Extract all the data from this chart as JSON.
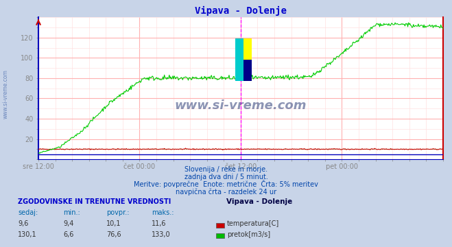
{
  "title": "Vipava - Dolenje",
  "title_color": "#0000cc",
  "bg_color": "#c8d4e8",
  "plot_bg_color": "#ffffff",
  "grid_color_major": "#ffb0b0",
  "grid_color_minor": "#ffe0e0",
  "x_labels": [
    "sre 12:00",
    "čet 00:00",
    "čet 12:00",
    "pet 00:00"
  ],
  "x_label_color": "#0044aa",
  "y_min": 0,
  "y_max": 140,
  "y_ticks": [
    20,
    40,
    60,
    80,
    100,
    120
  ],
  "y_tick_color": "#444444",
  "subtitle_lines": [
    "Slovenija / reke in morje.",
    "zadnja dva dni / 5 minut.",
    "Meritve: povprečne  Enote: metrične  Črta: 5% meritev",
    "navpična črta - razdelek 24 ur"
  ],
  "subtitle_color": "#0044aa",
  "table_header": "ZGODOVINSKE IN TRENUTNE VREDNOSTI",
  "table_header_color": "#0000cc",
  "col_headers": [
    "sedaj:",
    "min.:",
    "povpr.:",
    "maks.:"
  ],
  "col_header_color": "#0066aa",
  "row1_values": [
    "9,6",
    "9,4",
    "10,1",
    "11,6"
  ],
  "row2_values": [
    "130,1",
    "6,6",
    "76,6",
    "133,0"
  ],
  "row_color": "#333333",
  "legend_labels": [
    "temperatura[C]",
    "pretok[m3/s]"
  ],
  "legend_colors": [
    "#cc0000",
    "#00bb00"
  ],
  "station_label": "Vipava - Dolenje",
  "station_label_color": "#000044",
  "temp_line_color": "#cc0000",
  "flow_line_color": "#00cc00",
  "temp_dot_color": "#008800",
  "vline_color": "#ff00ff",
  "hline_color": "#0000bb",
  "border_left_color": "#0000bb",
  "border_right_color": "#cc0000",
  "watermark_color": "#1a2a6a",
  "logo_yellow": "#ffff00",
  "logo_cyan": "#00cccc",
  "logo_blue": "#000088",
  "sidebar_text_color": "#4466aa"
}
